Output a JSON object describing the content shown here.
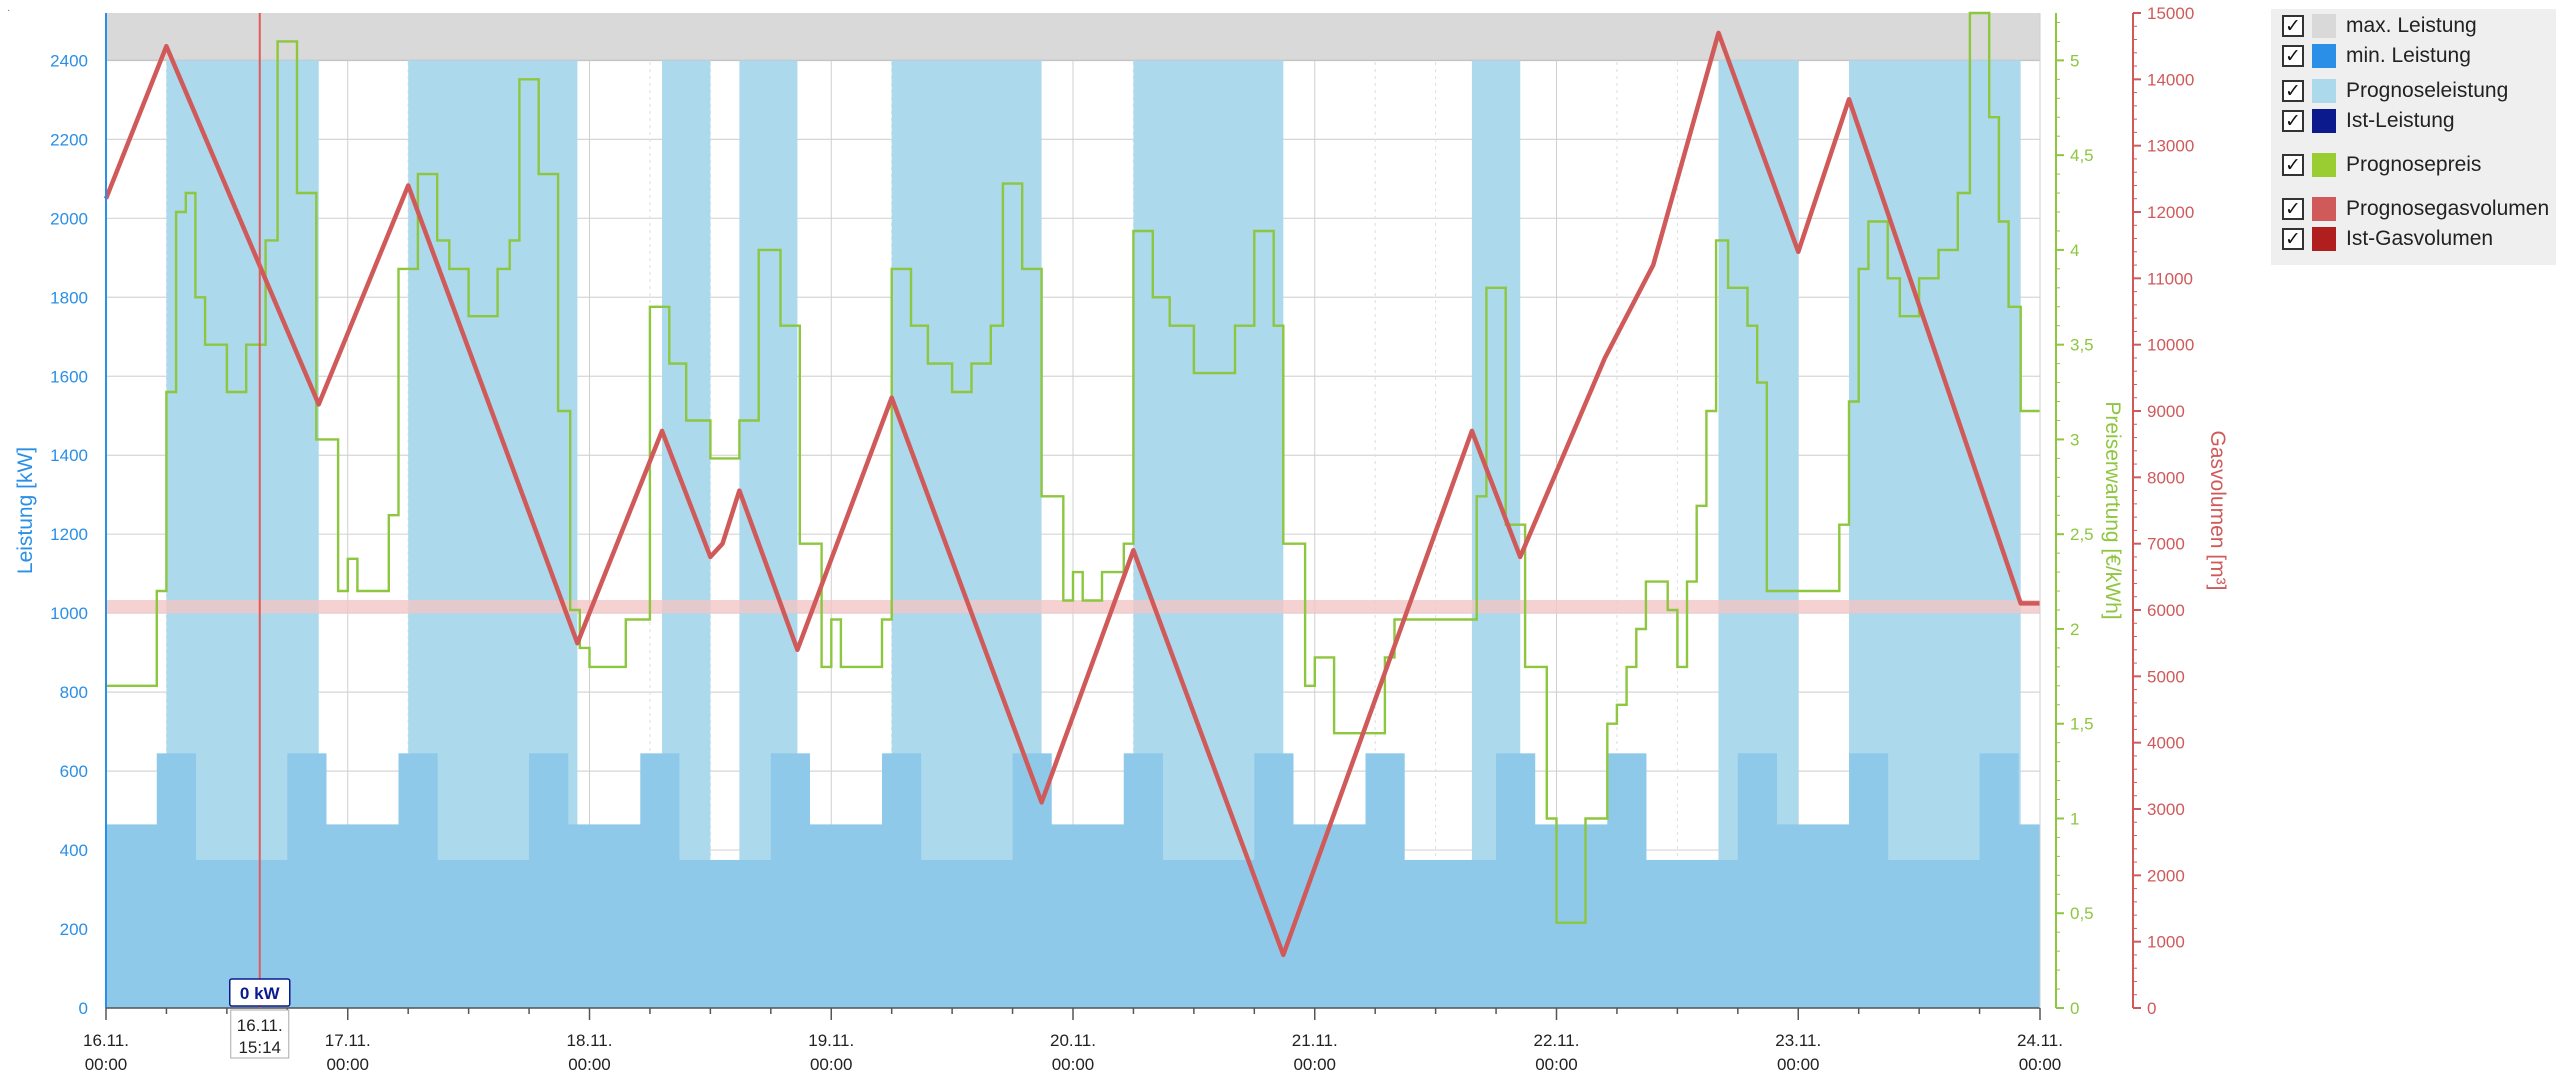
{
  "corner_mark": "·",
  "legend": {
    "check_glyph": "✓",
    "items": [
      {
        "label": "max. Leistung",
        "color": "#d9d9d9"
      },
      {
        "label": "min. Leistung",
        "color": "#2a8fe6"
      },
      {
        "label": "Prognoseleistung",
        "color": "#acd9ec"
      },
      {
        "label": "Ist-Leistung",
        "color": "#0b1a8c"
      },
      {
        "label": "Prognosepreis",
        "color": "#9acd32"
      },
      {
        "label": "Prognosegasvolumen",
        "color": "#d05a5a"
      },
      {
        "label": "Ist-Gasvolumen",
        "color": "#b01e1e"
      }
    ]
  },
  "cursor": {
    "value_label": "0 kW",
    "date_label": "16.11.",
    "time_label": "15:14",
    "day_position": 0.636
  },
  "colors": {
    "power_axis": "#2a8fe6",
    "price_axis": "#8dc63f",
    "gas_axis": "#d05a5a",
    "max_band": "#d9d9d9",
    "forecast_power": "#acd9ec",
    "min_power": "#8fc9ea",
    "price_line": "#8dc63f",
    "gas_line": "#d05a5a",
    "gas_limit_band": "#f4c6c6",
    "cursor_line": "#e05a5a"
  },
  "chart_data": {
    "type": "line",
    "x_unit": "days since 16.11. 00:00",
    "x_ticks": [
      {
        "date": "16.11.",
        "time": "00:00"
      },
      {
        "date": "17.11.",
        "time": "00:00"
      },
      {
        "date": "18.11.",
        "time": "00:00"
      },
      {
        "date": "19.11.",
        "time": "00:00"
      },
      {
        "date": "20.11.",
        "time": "00:00"
      },
      {
        "date": "21.11.",
        "time": "00:00"
      },
      {
        "date": "22.11.",
        "time": "00:00"
      },
      {
        "date": "23.11.",
        "time": "00:00"
      },
      {
        "date": "24.11.",
        "time": "00:00"
      }
    ],
    "xlim": [
      0,
      8
    ],
    "y_left": {
      "label": "Leistung [kW]",
      "lim": [
        0,
        2520
      ],
      "ticks": [
        0,
        200,
        400,
        600,
        800,
        1000,
        1200,
        1400,
        1600,
        1800,
        2000,
        2200,
        2400
      ]
    },
    "y_price": {
      "label": "Preiserwartung [€/kWh]",
      "lim": [
        0,
        5.25
      ],
      "ticks": [
        "0",
        "0,5",
        "1",
        "1,5",
        "2",
        "2,5",
        "3",
        "3,5",
        "4",
        "4,5",
        "5"
      ]
    },
    "y_gas": {
      "label": "Gasvolumen [m³]",
      "lim": [
        0,
        15000
      ],
      "ticks": [
        0,
        1000,
        2000,
        3000,
        4000,
        5000,
        6000,
        7000,
        8000,
        9000,
        10000,
        11000,
        12000,
        13000,
        14000,
        15000
      ]
    },
    "max_power": 2400,
    "gas_limit_band": [
      5950,
      6150
    ],
    "forecast_power_blocks": [
      {
        "start": 0.25,
        "end": 0.88,
        "value": 2400
      },
      {
        "start": 1.25,
        "end": 1.95,
        "value": 2400
      },
      {
        "start": 2.3,
        "end": 2.5,
        "value": 2400
      },
      {
        "start": 2.62,
        "end": 2.86,
        "value": 2400
      },
      {
        "start": 3.25,
        "end": 3.87,
        "value": 2400
      },
      {
        "start": 4.25,
        "end": 4.87,
        "value": 2400
      },
      {
        "start": 5.65,
        "end": 5.85,
        "value": 2400
      },
      {
        "start": 6.67,
        "end": 7.0,
        "value": 2400
      },
      {
        "start": 7.21,
        "end": 7.92,
        "value": 2400
      }
    ],
    "min_power": [
      {
        "start": 0.0,
        "end": 0.21,
        "value": 465
      },
      {
        "start": 0.21,
        "end": 0.37,
        "value": 645
      },
      {
        "start": 0.37,
        "end": 0.75,
        "value": 375
      },
      {
        "start": 0.75,
        "end": 0.91,
        "value": 645
      },
      {
        "start": 0.91,
        "end": 1.21,
        "value": 465
      },
      {
        "start": 1.21,
        "end": 1.37,
        "value": 645
      },
      {
        "start": 1.37,
        "end": 1.75,
        "value": 375
      },
      {
        "start": 1.75,
        "end": 1.91,
        "value": 645
      },
      {
        "start": 1.91,
        "end": 2.21,
        "value": 465
      },
      {
        "start": 2.21,
        "end": 2.37,
        "value": 645
      },
      {
        "start": 2.37,
        "end": 2.75,
        "value": 375
      },
      {
        "start": 2.75,
        "end": 2.91,
        "value": 645
      },
      {
        "start": 2.91,
        "end": 3.21,
        "value": 465
      },
      {
        "start": 3.21,
        "end": 3.37,
        "value": 645
      },
      {
        "start": 3.37,
        "end": 3.75,
        "value": 375
      },
      {
        "start": 3.75,
        "end": 3.91,
        "value": 645
      },
      {
        "start": 3.91,
        "end": 4.21,
        "value": 465
      },
      {
        "start": 4.21,
        "end": 4.37,
        "value": 645
      },
      {
        "start": 4.37,
        "end": 4.75,
        "value": 375
      },
      {
        "start": 4.75,
        "end": 4.91,
        "value": 645
      },
      {
        "start": 4.91,
        "end": 5.21,
        "value": 465
      },
      {
        "start": 5.21,
        "end": 5.37,
        "value": 645
      },
      {
        "start": 5.37,
        "end": 5.75,
        "value": 375
      },
      {
        "start": 5.75,
        "end": 5.91,
        "value": 645
      },
      {
        "start": 5.91,
        "end": 6.21,
        "value": 465
      },
      {
        "start": 6.21,
        "end": 6.37,
        "value": 645
      },
      {
        "start": 6.37,
        "end": 6.75,
        "value": 375
      },
      {
        "start": 6.75,
        "end": 6.91,
        "value": 645
      },
      {
        "start": 6.91,
        "end": 7.21,
        "value": 465
      },
      {
        "start": 7.21,
        "end": 7.37,
        "value": 645
      },
      {
        "start": 7.37,
        "end": 7.75,
        "value": 375
      },
      {
        "start": 7.75,
        "end": 7.91,
        "value": 645
      },
      {
        "start": 7.91,
        "end": 8.0,
        "value": 465
      }
    ],
    "price_series": {
      "name": "Prognosepreis",
      "steps": [
        [
          0.0,
          1.7
        ],
        [
          0.21,
          2.2
        ],
        [
          0.25,
          3.25
        ],
        [
          0.29,
          4.2
        ],
        [
          0.33,
          4.3
        ],
        [
          0.37,
          3.75
        ],
        [
          0.41,
          3.5
        ],
        [
          0.5,
          3.25
        ],
        [
          0.58,
          3.5
        ],
        [
          0.66,
          4.05
        ],
        [
          0.71,
          5.1
        ],
        [
          0.79,
          4.3
        ],
        [
          0.87,
          3.0
        ],
        [
          0.96,
          2.2
        ],
        [
          1.0,
          2.37
        ],
        [
          1.04,
          2.2
        ],
        [
          1.17,
          2.6
        ],
        [
          1.21,
          3.9
        ],
        [
          1.29,
          4.4
        ],
        [
          1.37,
          4.05
        ],
        [
          1.42,
          3.9
        ],
        [
          1.5,
          3.65
        ],
        [
          1.62,
          3.9
        ],
        [
          1.67,
          4.05
        ],
        [
          1.71,
          4.9
        ],
        [
          1.79,
          4.4
        ],
        [
          1.87,
          3.15
        ],
        [
          1.92,
          2.1
        ],
        [
          1.96,
          1.9
        ],
        [
          2.0,
          1.8
        ],
        [
          2.15,
          2.05
        ],
        [
          2.25,
          3.7
        ],
        [
          2.33,
          3.4
        ],
        [
          2.4,
          3.1
        ],
        [
          2.5,
          2.9
        ],
        [
          2.62,
          3.1
        ],
        [
          2.7,
          4.0
        ],
        [
          2.79,
          3.6
        ],
        [
          2.87,
          2.45
        ],
        [
          2.96,
          1.8
        ],
        [
          3.0,
          2.05
        ],
        [
          3.04,
          1.8
        ],
        [
          3.21,
          2.05
        ],
        [
          3.25,
          3.9
        ],
        [
          3.33,
          3.6
        ],
        [
          3.4,
          3.4
        ],
        [
          3.5,
          3.25
        ],
        [
          3.58,
          3.4
        ],
        [
          3.66,
          3.6
        ],
        [
          3.71,
          4.35
        ],
        [
          3.79,
          3.9
        ],
        [
          3.87,
          2.7
        ],
        [
          3.96,
          2.15
        ],
        [
          4.0,
          2.3
        ],
        [
          4.04,
          2.15
        ],
        [
          4.12,
          2.3
        ],
        [
          4.21,
          2.45
        ],
        [
          4.25,
          4.1
        ],
        [
          4.33,
          3.75
        ],
        [
          4.4,
          3.6
        ],
        [
          4.5,
          3.35
        ],
        [
          4.67,
          3.6
        ],
        [
          4.75,
          4.1
        ],
        [
          4.83,
          3.6
        ],
        [
          4.87,
          2.45
        ],
        [
          4.96,
          1.7
        ],
        [
          5.0,
          1.85
        ],
        [
          5.08,
          1.45
        ],
        [
          5.29,
          1.85
        ],
        [
          5.33,
          2.05
        ],
        [
          5.46,
          2.05
        ],
        [
          5.67,
          2.7
        ],
        [
          5.71,
          3.8
        ],
        [
          5.79,
          2.55
        ],
        [
          5.87,
          1.8
        ],
        [
          5.96,
          1.0
        ],
        [
          6.0,
          0.45
        ],
        [
          6.12,
          1.0
        ],
        [
          6.21,
          1.5
        ],
        [
          6.25,
          1.6
        ],
        [
          6.29,
          1.8
        ],
        [
          6.33,
          2.0
        ],
        [
          6.37,
          2.25
        ],
        [
          6.46,
          2.1
        ],
        [
          6.5,
          1.8
        ],
        [
          6.54,
          2.25
        ],
        [
          6.58,
          2.65
        ],
        [
          6.62,
          3.15
        ],
        [
          6.66,
          4.05
        ],
        [
          6.71,
          3.8
        ],
        [
          6.79,
          3.6
        ],
        [
          6.83,
          3.3
        ],
        [
          6.87,
          2.2
        ],
        [
          7.0,
          2.2
        ],
        [
          7.17,
          2.55
        ],
        [
          7.21,
          3.2
        ],
        [
          7.25,
          3.9
        ],
        [
          7.29,
          4.15
        ],
        [
          7.37,
          3.85
        ],
        [
          7.42,
          3.65
        ],
        [
          7.5,
          3.85
        ],
        [
          7.58,
          4.0
        ],
        [
          7.66,
          4.3
        ],
        [
          7.71,
          5.25
        ],
        [
          7.79,
          4.7
        ],
        [
          7.83,
          4.15
        ],
        [
          7.87,
          3.7
        ],
        [
          7.92,
          3.15
        ],
        [
          8.0,
          3.15
        ]
      ]
    },
    "gas_series": {
      "name": "Prognosegasvolumen",
      "points": [
        [
          0.0,
          12200
        ],
        [
          0.25,
          14500
        ],
        [
          0.88,
          9100
        ],
        [
          1.25,
          12400
        ],
        [
          1.95,
          5500
        ],
        [
          2.3,
          8700
        ],
        [
          2.5,
          6800
        ],
        [
          2.55,
          7000
        ],
        [
          2.62,
          7800
        ],
        [
          2.86,
          5400
        ],
        [
          3.25,
          9200
        ],
        [
          3.87,
          3100
        ],
        [
          4.25,
          6900
        ],
        [
          4.87,
          800
        ],
        [
          5.65,
          8700
        ],
        [
          5.85,
          6800
        ],
        [
          6.2,
          9800
        ],
        [
          6.4,
          11200
        ],
        [
          6.67,
          14700
        ],
        [
          7.0,
          11400
        ],
        [
          7.21,
          13700
        ],
        [
          7.92,
          6100
        ],
        [
          8.0,
          6100
        ]
      ]
    }
  }
}
